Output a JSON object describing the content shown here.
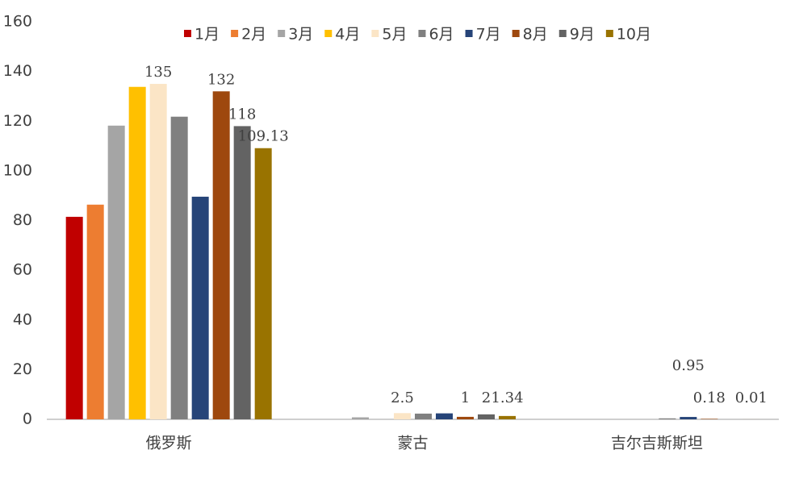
{
  "chart_data": {
    "type": "bar",
    "categories": [
      "俄罗斯",
      "蒙古",
      "吉尔吉斯斯坦"
    ],
    "series": [
      {
        "name": "1月",
        "color": "#c00000",
        "values": [
          81.5,
          null,
          null
        ],
        "value_labels": [
          null,
          null,
          null
        ]
      },
      {
        "name": "2月",
        "color": "#ed7d31",
        "values": [
          86.4,
          null,
          null
        ],
        "value_labels": [
          null,
          null,
          null
        ]
      },
      {
        "name": "3月",
        "color": "#a5a5a5",
        "values": [
          118.2,
          0.8,
          null
        ],
        "value_labels": [
          null,
          null,
          null
        ]
      },
      {
        "name": "4月",
        "color": "#ffc000",
        "values": [
          133.8,
          null,
          null
        ],
        "value_labels": [
          null,
          null,
          null
        ]
      },
      {
        "name": "5月",
        "color": "#fbe5c6",
        "values": [
          135,
          2.5,
          null
        ],
        "value_labels": [
          "135",
          "2.5",
          null
        ]
      },
      {
        "name": "6月",
        "color": "#808080",
        "values": [
          121.8,
          2.3,
          0.4
        ],
        "value_labels": [
          null,
          null,
          null
        ]
      },
      {
        "name": "7月",
        "color": "#264478",
        "values": [
          89.6,
          2.4,
          0.95
        ],
        "value_labels": [
          null,
          null,
          "0.95"
        ]
      },
      {
        "name": "8月",
        "color": "#9e480e",
        "values": [
          132,
          1,
          0.18
        ],
        "value_labels": [
          "132",
          "1",
          "0.18"
        ]
      },
      {
        "name": "9月",
        "color": "#636363",
        "values": [
          118,
          2,
          null
        ],
        "value_labels": [
          "118",
          "2",
          null
        ]
      },
      {
        "name": "10月",
        "color": "#997300",
        "values": [
          109.13,
          1.34,
          0.01
        ],
        "value_labels": [
          "109.13",
          "1.34",
          "0.01"
        ]
      }
    ],
    "ylim": [
      0,
      160
    ],
    "yticks": [
      0,
      20,
      40,
      60,
      80,
      100,
      120,
      140,
      160
    ],
    "grid": false
  }
}
